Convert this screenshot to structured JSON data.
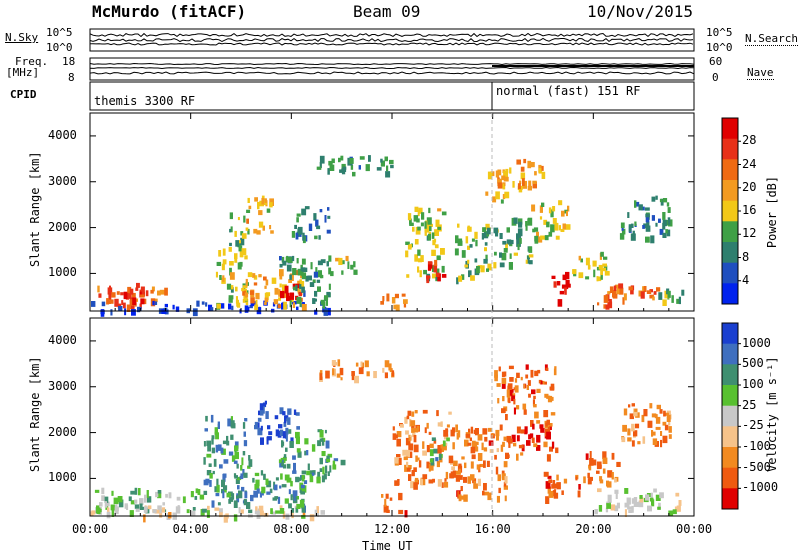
{
  "header": {
    "station": "McMurdo (fitACF)",
    "beam": "Beam 09",
    "date": "10/Nov/2015"
  },
  "aux": {
    "nsky_label": "N.Sky",
    "nsearch_label": "N.Search",
    "nsky_ticks": [
      "10^5",
      "10^0"
    ],
    "nsearch_ticks": [
      "10^5",
      "10^0"
    ],
    "freq_label_1": "Freq.",
    "freq_label_2": "[MHz]",
    "freq_ticks": [
      "18",
      "8"
    ],
    "nave_label": "Nave",
    "nave_ticks": [
      "60",
      "0"
    ],
    "cpid_label": "CPID",
    "cpid_segments": [
      {
        "name": "themis 3300 RF",
        "start_hour": 0
      },
      {
        "name": "normal (fast) 151 RF",
        "start_hour": 16
      }
    ]
  },
  "colors": {
    "power_scale": [
      "#0022ee",
      "#1f4fbf",
      "#2e7f6e",
      "#3fa046",
      "#f2c818",
      "#f39a20",
      "#ef6a12",
      "#e83018",
      "#e00000"
    ],
    "velocity_scale": [
      "#e00000",
      "#ef5a10",
      "#f28a20",
      "#f6c38a",
      "#c8c8c8",
      "#58c030",
      "#3f8f70",
      "#3f6fbf",
      "#1a3fcf"
    ]
  },
  "chart_data": [
    {
      "type": "heatmap",
      "name": "Power",
      "ylabel": "Slant Range [km]",
      "xlabel": "Time UT",
      "x_ticks": [
        "00:00",
        "04:00",
        "08:00",
        "12:00",
        "16:00",
        "20:00",
        "00:00"
      ],
      "y_ticks": [
        1000,
        2000,
        3000,
        4000
      ],
      "xlim_hours": [
        0,
        24
      ],
      "ylim_km": [
        180,
        4500
      ],
      "colorbar_label": "Power [dB]",
      "colorbar_ticks": [
        "28",
        "24",
        "20",
        "16",
        "12",
        "8",
        "4"
      ],
      "colorbar_range": [
        0,
        32
      ],
      "scatter_regions": [
        {
          "t0": 0.0,
          "t1": 3.0,
          "r0": 300,
          "r1": 800,
          "level": 0.75
        },
        {
          "t0": 0.0,
          "t1": 9.5,
          "r0": 200,
          "r1": 420,
          "level": 0.1
        },
        {
          "t0": 1.2,
          "t1": 2.2,
          "r0": 400,
          "r1": 700,
          "level": 0.9
        },
        {
          "t0": 5.0,
          "t1": 6.2,
          "r0": 300,
          "r1": 1700,
          "level": 0.45
        },
        {
          "t0": 5.5,
          "t1": 6.3,
          "r0": 1600,
          "r1": 2400,
          "level": 0.4
        },
        {
          "t0": 6.0,
          "t1": 8.5,
          "r0": 300,
          "r1": 1100,
          "level": 0.6
        },
        {
          "t0": 7.5,
          "t1": 8.5,
          "r0": 500,
          "r1": 800,
          "level": 0.95
        },
        {
          "t0": 6.2,
          "t1": 7.2,
          "r0": 1900,
          "r1": 2700,
          "level": 0.55
        },
        {
          "t0": 7.5,
          "t1": 9.5,
          "r0": 300,
          "r1": 1400,
          "level": 0.3
        },
        {
          "t0": 8.0,
          "t1": 9.5,
          "r0": 1800,
          "r1": 2500,
          "level": 0.25
        },
        {
          "t0": 9.5,
          "t1": 10.5,
          "r0": 1000,
          "r1": 1400,
          "level": 0.5
        },
        {
          "t0": 11.5,
          "t1": 12.5,
          "r0": 300,
          "r1": 600,
          "level": 0.65
        },
        {
          "t0": 12.5,
          "t1": 14.0,
          "r0": 900,
          "r1": 2500,
          "level": 0.45
        },
        {
          "t0": 13.3,
          "t1": 14.0,
          "r0": 900,
          "r1": 1300,
          "level": 0.85
        },
        {
          "t0": 14.5,
          "t1": 15.8,
          "r0": 900,
          "r1": 2100,
          "level": 0.4
        },
        {
          "t0": 15.7,
          "t1": 16.5,
          "r0": 2600,
          "r1": 3300,
          "level": 0.55
        },
        {
          "t0": 16.0,
          "t1": 18.0,
          "r0": 2900,
          "r1": 3500,
          "level": 0.6
        },
        {
          "t0": 16.0,
          "t1": 17.5,
          "r0": 1200,
          "r1": 2300,
          "level": 0.35
        },
        {
          "t0": 17.5,
          "t1": 19.0,
          "r0": 1800,
          "r1": 2600,
          "level": 0.5
        },
        {
          "t0": 18.3,
          "t1": 19.0,
          "r0": 400,
          "r1": 1100,
          "level": 0.98
        },
        {
          "t0": 19.0,
          "t1": 20.5,
          "r0": 900,
          "r1": 1500,
          "level": 0.5
        },
        {
          "t0": 20.0,
          "t1": 22.5,
          "r0": 300,
          "r1": 800,
          "level": 0.75
        },
        {
          "t0": 22.5,
          "t1": 23.5,
          "r0": 400,
          "r1": 700,
          "level": 0.4
        },
        {
          "t0": 9.0,
          "t1": 12.0,
          "r0": 3200,
          "r1": 3600,
          "level": 0.3
        },
        {
          "t0": 21.0,
          "t1": 23.0,
          "r0": 1800,
          "r1": 2700,
          "level": 0.3
        }
      ]
    },
    {
      "type": "heatmap",
      "name": "Velocity",
      "ylabel": "Slant Range [km]",
      "xlabel": "Time UT",
      "x_ticks": [
        "00:00",
        "04:00",
        "08:00",
        "12:00",
        "16:00",
        "20:00",
        "00:00"
      ],
      "y_ticks": [
        1000,
        2000,
        3000,
        4000
      ],
      "xlim_hours": [
        0,
        24
      ],
      "ylim_km": [
        180,
        4500
      ],
      "colorbar_label": "Velocity [m s⁻¹]",
      "colorbar_ticks": [
        "1000",
        "500",
        "100",
        "25",
        "-25",
        "-100",
        "-500",
        "-1000"
      ],
      "colorbar_range": [
        -1200,
        1200
      ],
      "scatter_regions": [
        {
          "t0": 0.0,
          "t1": 4.5,
          "r0": 300,
          "r1": 800,
          "level": 0.62
        },
        {
          "t0": 0.0,
          "t1": 9.5,
          "r0": 200,
          "r1": 420,
          "level": 0.45
        },
        {
          "t0": 4.5,
          "t1": 6.3,
          "r0": 400,
          "r1": 2400,
          "level": 0.75
        },
        {
          "t0": 6.0,
          "t1": 8.5,
          "r0": 300,
          "r1": 1200,
          "level": 0.75
        },
        {
          "t0": 6.5,
          "t1": 8.2,
          "r0": 1800,
          "r1": 2700,
          "level": 0.9
        },
        {
          "t0": 7.5,
          "t1": 9.5,
          "r0": 1000,
          "r1": 2100,
          "level": 0.7
        },
        {
          "t0": 9.0,
          "t1": 10.0,
          "r0": 1100,
          "r1": 1500,
          "level": 0.7
        },
        {
          "t0": 11.5,
          "t1": 12.5,
          "r0": 300,
          "r1": 700,
          "level": 0.2
        },
        {
          "t0": 12.0,
          "t1": 14.5,
          "r0": 900,
          "r1": 2500,
          "level": 0.25
        },
        {
          "t0": 13.5,
          "t1": 14.2,
          "r0": 1400,
          "r1": 1900,
          "level": 0.7
        },
        {
          "t0": 14.5,
          "t1": 16.5,
          "r0": 600,
          "r1": 2200,
          "level": 0.22
        },
        {
          "t0": 16.0,
          "t1": 18.5,
          "r0": 2400,
          "r1": 3500,
          "level": 0.2
        },
        {
          "t0": 16.5,
          "t1": 18.5,
          "r0": 1500,
          "r1": 2300,
          "level": 0.15
        },
        {
          "t0": 18.0,
          "t1": 19.5,
          "r0": 600,
          "r1": 1200,
          "level": 0.2
        },
        {
          "t0": 19.5,
          "t1": 21.0,
          "r0": 900,
          "r1": 1600,
          "level": 0.22
        },
        {
          "t0": 20.0,
          "t1": 23.5,
          "r0": 300,
          "r1": 800,
          "level": 0.5
        },
        {
          "t0": 21.0,
          "t1": 23.0,
          "r0": 1800,
          "r1": 2700,
          "level": 0.25
        },
        {
          "t0": 9.0,
          "t1": 12.0,
          "r0": 3200,
          "r1": 3600,
          "level": 0.3
        }
      ]
    }
  ]
}
